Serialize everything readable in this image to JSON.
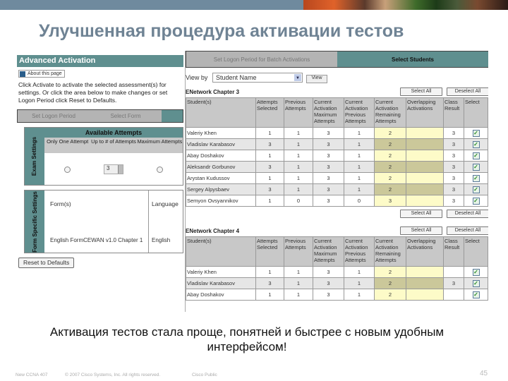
{
  "slide": {
    "title": "Улучшенная процедура активации тестов",
    "caption": "Активация тестов стала проще, понятней и быстрее с новым удобным интерфейсом!",
    "footer": {
      "course": "New CCNA 407",
      "copyright": "© 2007 Cisco Systems, Inc. All rights reserved.",
      "classification": "Cisco Public",
      "page": "45"
    },
    "colors": {
      "accent": "#5f8f8f",
      "title": "#6f8394",
      "highlight": "#fdfbc8"
    }
  },
  "left": {
    "heading": "Advanced Activation",
    "about": "About this page",
    "intro": "Click Activate to activate the selected assessment(s) for settings. Or click the area below to make changes or set Logon Period click Reset to Defaults.",
    "wizard": [
      "Set Logon Period",
      "Select Form"
    ],
    "exam_label": "Exam Settings",
    "available_attempts": "Available Attempts",
    "options": [
      "Only One Attempt",
      "Up to # of Attempts",
      "Maximum Attempts"
    ],
    "attempts_value": "3",
    "form_label": "Form Specific Settings",
    "form_header": "Form(s)",
    "language_header": "Language",
    "form_value": "English FormCEWAN v1.0 Chapter 1",
    "language_value": "English",
    "reset_button": "Reset to Defaults"
  },
  "right": {
    "wizard": [
      "Set Logon Period for Batch Activations",
      "Select Students"
    ],
    "view_by_label": "View by",
    "view_by_value": "Student Name",
    "view_button": "View",
    "select_all": "Select All",
    "deselect_all": "Deselect All",
    "columns": [
      "Student(s)",
      "Attempts Selected",
      "Previous Attempts",
      "Current Activation Maximum Attempts",
      "Current Activation Previous Attempts",
      "Current Activation Remaining Attempts",
      "Overlapping Activations",
      "Class Result",
      "Select"
    ],
    "sections": [
      {
        "title": "ENetwork Chapter 3",
        "rows": [
          [
            "Valeriy Khen",
            "1",
            "1",
            "3",
            "1",
            "2",
            "",
            "3",
            true
          ],
          [
            "Vladislav Karabasov",
            "3",
            "1",
            "3",
            "1",
            "2",
            "",
            "3",
            true
          ],
          [
            "Abay Doshakov",
            "1",
            "1",
            "3",
            "1",
            "2",
            "",
            "3",
            true
          ],
          [
            "Aleksandr Gorbunov",
            "3",
            "1",
            "3",
            "1",
            "2",
            "",
            "3",
            true
          ],
          [
            "Arystan Kudussov",
            "1",
            "1",
            "3",
            "1",
            "2",
            "",
            "3",
            true
          ],
          [
            "Sergey Alpysbaev",
            "3",
            "1",
            "3",
            "1",
            "2",
            "",
            "3",
            true
          ],
          [
            "Semyon Ovsyannikov",
            "1",
            "0",
            "3",
            "0",
            "3",
            "",
            "3",
            true
          ]
        ]
      },
      {
        "title": "ENetwork Chapter 4",
        "rows": [
          [
            "Valeriy Khen",
            "1",
            "1",
            "3",
            "1",
            "2",
            "",
            "",
            true
          ],
          [
            "Vladislav Karabasov",
            "3",
            "1",
            "3",
            "1",
            "2",
            "",
            "3",
            true
          ],
          [
            "Abay Doshakov",
            "1",
            "1",
            "3",
            "1",
            "2",
            "",
            "",
            true
          ]
        ]
      }
    ]
  }
}
